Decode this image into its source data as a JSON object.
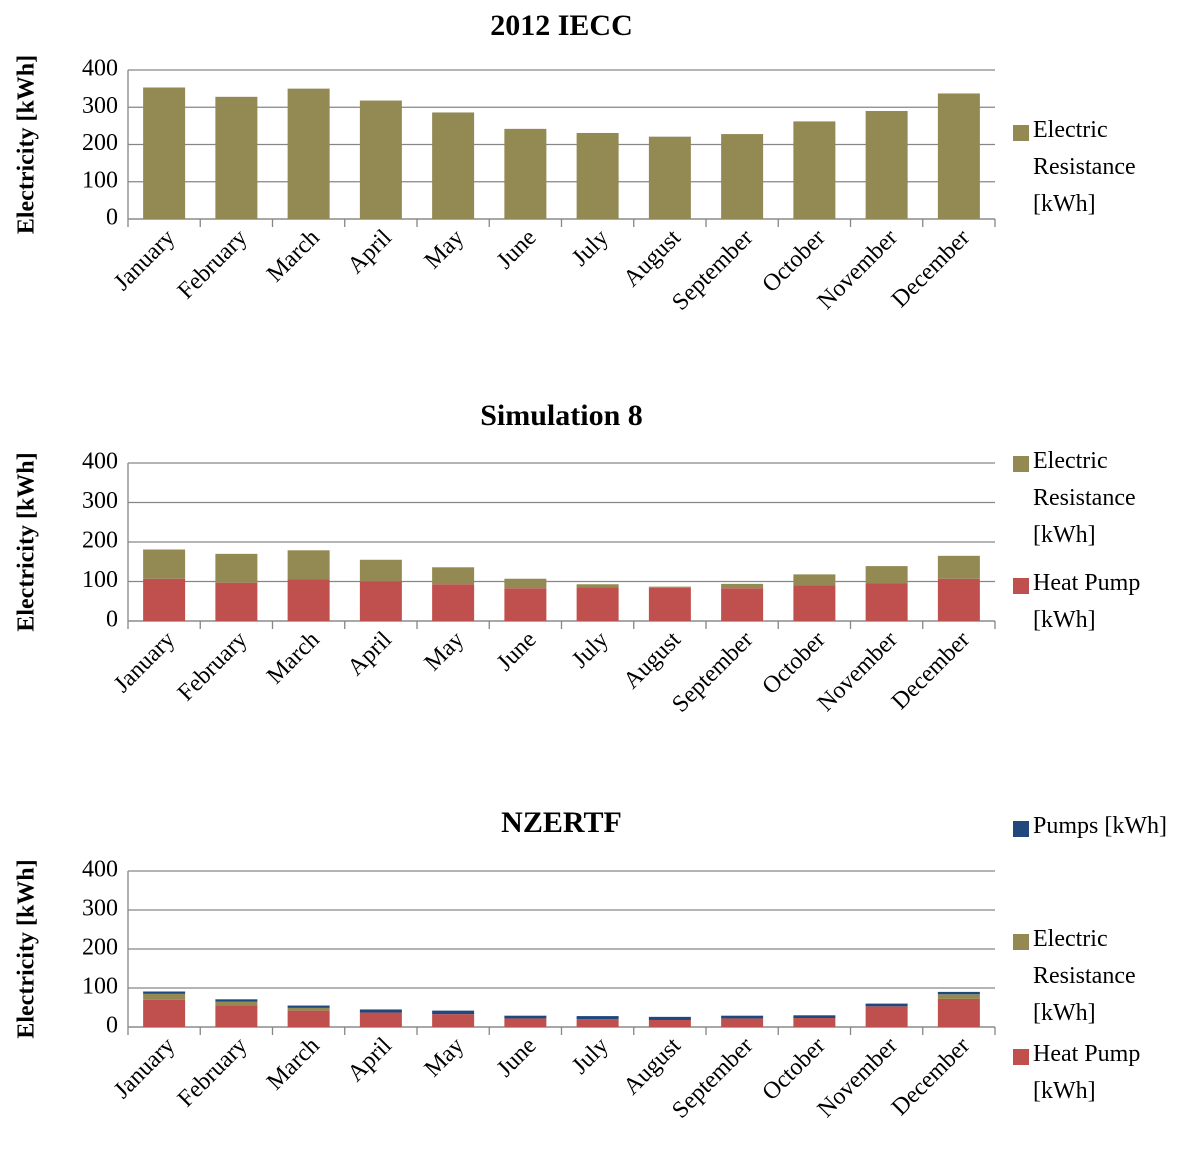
{
  "chart_data": [
    {
      "type": "bar",
      "title": "2012 IECC",
      "y_label": "Electricity [kWh]",
      "categories": [
        "January",
        "February",
        "March",
        "April",
        "May",
        "June",
        "July",
        "August",
        "September",
        "October",
        "November",
        "December"
      ],
      "series": [
        {
          "name": "Electric Resistance [kWh]",
          "color": "#938953",
          "values": [
            353,
            328,
            350,
            318,
            286,
            242,
            231,
            221,
            228,
            262,
            290,
            337
          ]
        }
      ],
      "ylim": [
        0,
        400
      ],
      "yticks": [
        0,
        100,
        200,
        300,
        400
      ],
      "grid": true,
      "legend": "right"
    },
    {
      "type": "stacked_bar",
      "title": "Simulation 8",
      "y_label": "Electricity [kWh]",
      "categories": [
        "January",
        "February",
        "March",
        "April",
        "May",
        "June",
        "July",
        "August",
        "September",
        "October",
        "November",
        "December"
      ],
      "series": [
        {
          "name": "Heat Pump [kWh]",
          "color": "#c0504d",
          "values": [
            107,
            97,
            105,
            100,
            93,
            83,
            85,
            84,
            83,
            90,
            95,
            107
          ]
        },
        {
          "name": "Electric Resistance [kWh]",
          "color": "#938953",
          "values": [
            74,
            73,
            74,
            55,
            43,
            24,
            8,
            3,
            11,
            28,
            44,
            58
          ]
        }
      ],
      "ylim": [
        0,
        400
      ],
      "yticks": [
        0,
        100,
        200,
        300,
        400
      ],
      "grid": true,
      "legend": "right"
    },
    {
      "type": "stacked_bar",
      "title": "NZERTF",
      "y_label": "Electricity [kWh]",
      "categories": [
        "January",
        "February",
        "March",
        "April",
        "May",
        "June",
        "July",
        "August",
        "September",
        "October",
        "November",
        "December"
      ],
      "series": [
        {
          "name": "Heat Pump [kWh]",
          "color": "#c0504d",
          "values": [
            70,
            55,
            42,
            37,
            33,
            22,
            20,
            18,
            22,
            23,
            53,
            72
          ]
        },
        {
          "name": "Electric Resistance [kWh]",
          "color": "#938953",
          "values": [
            15,
            10,
            7,
            0,
            0,
            0,
            0,
            0,
            0,
            0,
            0,
            12
          ]
        },
        {
          "name": "Pumps [kWh]",
          "color": "#1f497d",
          "values": [
            6,
            6,
            6,
            8,
            9,
            7,
            8,
            8,
            7,
            7,
            7,
            6
          ]
        }
      ],
      "ylim": [
        0,
        400
      ],
      "yticks": [
        0,
        100,
        200,
        300,
        400
      ],
      "grid": true,
      "legend": "right"
    }
  ]
}
